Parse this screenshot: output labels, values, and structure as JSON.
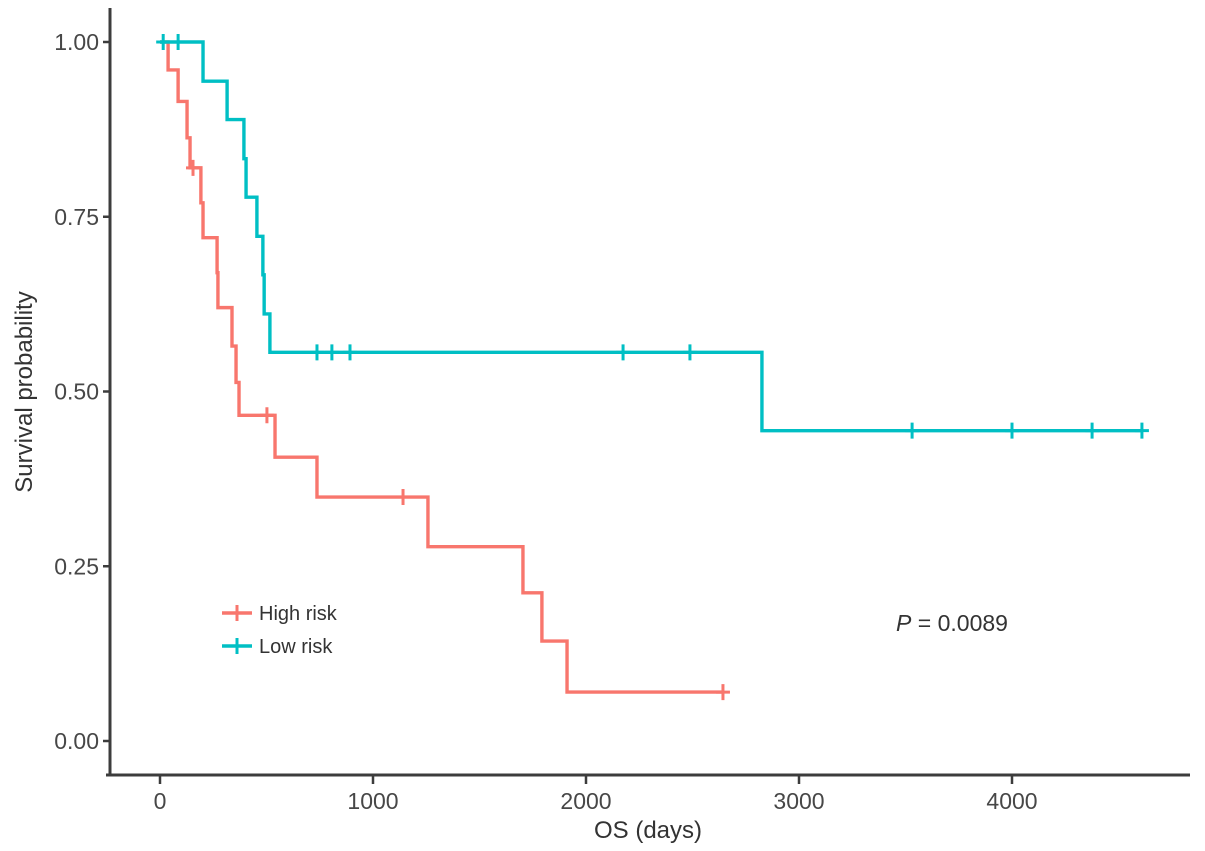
{
  "figure": {
    "p_label": "P",
    "p_rest": " = 0.0089"
  },
  "colors": {
    "high_risk": "#F8766D",
    "low_risk": "#00BFC4",
    "axis": "#3C3C3C",
    "text": "#474747"
  },
  "axes": {
    "x": {
      "title": "OS (days)",
      "ticks": [
        {
          "v": 0,
          "label": "0"
        },
        {
          "v": 1000,
          "label": "1000"
        },
        {
          "v": 2000,
          "label": "2000"
        },
        {
          "v": 3000,
          "label": "3000"
        },
        {
          "v": 4000,
          "label": "4000"
        }
      ]
    },
    "y": {
      "title": "Survival probability",
      "ticks": [
        {
          "v": 1.0,
          "label": "1.00"
        },
        {
          "v": 0.75,
          "label": "0.75"
        },
        {
          "v": 0.5,
          "label": "0.50"
        },
        {
          "v": 0.25,
          "label": "0.25"
        },
        {
          "v": 0.0,
          "label": "0.00"
        }
      ]
    }
  },
  "legend": {
    "items": [
      {
        "label": "High risk",
        "color_key": "high_risk"
      },
      {
        "label": "Low risk",
        "color_key": "low_risk"
      }
    ]
  },
  "chart_data": {
    "type": "line",
    "subtype": "kaplan-meier-step-curves",
    "title": "",
    "xlabel": "OS (days)",
    "ylabel": "Survival probability",
    "xlim": [
      0,
      4800
    ],
    "ylim": [
      0,
      1
    ],
    "grid": false,
    "legend_position": "inside-lower-left",
    "annotation": "P = 0.0089",
    "series": [
      {
        "name": "High risk",
        "color_key": "high_risk",
        "steps": [
          [
            0,
            1.0
          ],
          [
            38,
            0.96
          ],
          [
            85,
            0.915
          ],
          [
            127,
            0.863
          ],
          [
            141,
            0.82
          ],
          [
            192,
            0.77
          ],
          [
            202,
            0.72
          ],
          [
            268,
            0.67
          ],
          [
            272,
            0.62
          ],
          [
            338,
            0.565
          ],
          [
            357,
            0.513
          ],
          [
            371,
            0.466
          ],
          [
            540,
            0.406
          ],
          [
            737,
            0.349
          ],
          [
            1258,
            0.278
          ],
          [
            1704,
            0.212
          ],
          [
            1793,
            0.143
          ],
          [
            1911,
            0.07
          ]
        ],
        "end_time": 2643,
        "censor_marks": [
          [
            155,
            0.82
          ],
          [
            502,
            0.466
          ],
          [
            1141,
            0.349
          ],
          [
            2643,
            0.07
          ]
        ]
      },
      {
        "name": "Low risk",
        "color_key": "low_risk",
        "steps": [
          [
            0,
            1.0
          ],
          [
            202,
            0.944
          ],
          [
            315,
            0.889
          ],
          [
            394,
            0.833
          ],
          [
            404,
            0.778
          ],
          [
            455,
            0.722
          ],
          [
            483,
            0.667
          ],
          [
            489,
            0.611
          ],
          [
            516,
            0.556
          ],
          [
            2826,
            0.444
          ]
        ],
        "end_time": 4610,
        "censor_marks": [
          [
            15,
            1.0
          ],
          [
            85,
            1.0
          ],
          [
            737,
            0.556
          ],
          [
            807,
            0.556
          ],
          [
            892,
            0.556
          ],
          [
            2174,
            0.556
          ],
          [
            2488,
            0.556
          ],
          [
            3531,
            0.444
          ],
          [
            4000,
            0.444
          ],
          [
            4376,
            0.444
          ],
          [
            4610,
            0.444
          ]
        ]
      }
    ]
  }
}
